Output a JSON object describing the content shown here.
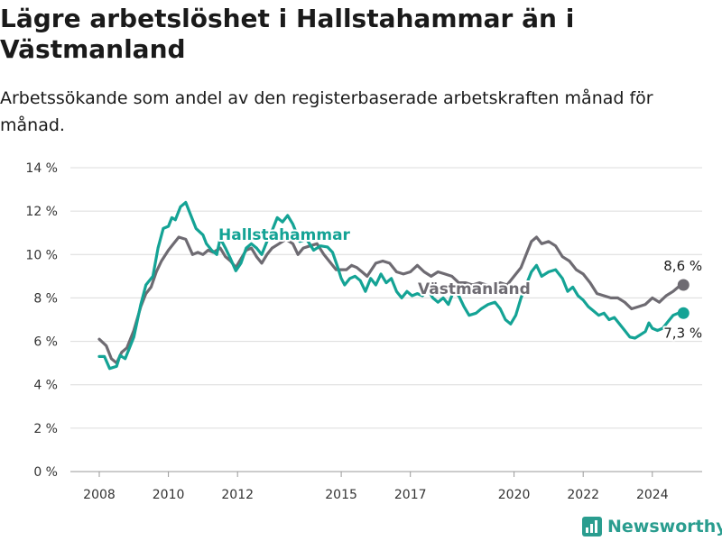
{
  "title": "Lägre arbetslöshet i Hallstahammar än i Västmanland",
  "subtitle": "Arbetssökande som andel av den registerbaserade arbetskraften månad för månad.",
  "brand": {
    "name": "Newsworthy",
    "icon": "newsworthy-logo-icon"
  },
  "colors": {
    "hallstahammar": "#14a395",
    "vastmanland": "#6e6b72",
    "grid": "#dcdcdc"
  },
  "chart_data": {
    "type": "line",
    "title": "Lägre arbetslöshet i Hallstahammar än i Västmanland",
    "subtitle": "Arbetssökande som andel av den registerbaserade arbetskraften månad för månad.",
    "xlabel": "",
    "ylabel": "",
    "ylim": [
      0,
      14
    ],
    "y_ticks": [
      0,
      2,
      4,
      6,
      8,
      10,
      12,
      14
    ],
    "y_tick_labels": [
      "0 %",
      "2 %",
      "4 %",
      "6 %",
      "8 %",
      "10 %",
      "12 %",
      "14 %"
    ],
    "x_ticks": [
      2008,
      2010,
      2012,
      2015,
      2017,
      2020,
      2022,
      2024
    ],
    "x_tick_labels": [
      "2008",
      "2010",
      "2012",
      "2015",
      "2017",
      "2020",
      "2022",
      "2024"
    ],
    "grid": true,
    "series": [
      {
        "name": "Hallstahammar",
        "end_label": "7,3 %",
        "points": [
          [
            2008.0,
            5.3
          ],
          [
            2008.15,
            5.3
          ],
          [
            2008.3,
            4.75
          ],
          [
            2008.5,
            4.85
          ],
          [
            2008.6,
            5.35
          ],
          [
            2008.75,
            5.2
          ],
          [
            2009.0,
            6.2
          ],
          [
            2009.2,
            7.7
          ],
          [
            2009.35,
            8.6
          ],
          [
            2009.55,
            9.0
          ],
          [
            2009.7,
            10.3
          ],
          [
            2009.85,
            11.2
          ],
          [
            2010.0,
            11.3
          ],
          [
            2010.1,
            11.7
          ],
          [
            2010.2,
            11.6
          ],
          [
            2010.35,
            12.2
          ],
          [
            2010.5,
            12.4
          ],
          [
            2010.65,
            11.8
          ],
          [
            2010.8,
            11.2
          ],
          [
            2011.0,
            10.9
          ],
          [
            2011.1,
            10.5
          ],
          [
            2011.25,
            10.2
          ],
          [
            2011.4,
            10.0
          ],
          [
            2011.5,
            10.75
          ],
          [
            2011.65,
            10.3
          ],
          [
            2011.8,
            9.8
          ],
          [
            2011.95,
            9.25
          ],
          [
            2012.1,
            9.6
          ],
          [
            2012.25,
            10.3
          ],
          [
            2012.4,
            10.5
          ],
          [
            2012.55,
            10.3
          ],
          [
            2012.7,
            10.0
          ],
          [
            2012.85,
            10.6
          ],
          [
            2013.0,
            11.1
          ],
          [
            2013.15,
            11.7
          ],
          [
            2013.3,
            11.5
          ],
          [
            2013.45,
            11.8
          ],
          [
            2013.6,
            11.4
          ],
          [
            2013.8,
            10.6
          ],
          [
            2014.0,
            10.7
          ],
          [
            2014.2,
            10.2
          ],
          [
            2014.4,
            10.4
          ],
          [
            2014.6,
            10.35
          ],
          [
            2014.75,
            10.1
          ],
          [
            2014.9,
            9.4
          ],
          [
            2015.0,
            8.9
          ],
          [
            2015.1,
            8.6
          ],
          [
            2015.25,
            8.9
          ],
          [
            2015.4,
            9.0
          ],
          [
            2015.55,
            8.8
          ],
          [
            2015.7,
            8.3
          ],
          [
            2015.85,
            8.9
          ],
          [
            2016.0,
            8.6
          ],
          [
            2016.15,
            9.1
          ],
          [
            2016.3,
            8.7
          ],
          [
            2016.45,
            8.9
          ],
          [
            2016.6,
            8.3
          ],
          [
            2016.75,
            8.0
          ],
          [
            2016.9,
            8.3
          ],
          [
            2017.05,
            8.1
          ],
          [
            2017.2,
            8.2
          ],
          [
            2017.35,
            8.1
          ],
          [
            2017.5,
            8.4
          ],
          [
            2017.65,
            8.0
          ],
          [
            2017.8,
            7.8
          ],
          [
            2017.95,
            8.0
          ],
          [
            2018.1,
            7.7
          ],
          [
            2018.25,
            8.3
          ],
          [
            2018.4,
            8.1
          ],
          [
            2018.55,
            7.6
          ],
          [
            2018.7,
            7.2
          ],
          [
            2018.9,
            7.3
          ],
          [
            2019.05,
            7.5
          ],
          [
            2019.25,
            7.7
          ],
          [
            2019.45,
            7.8
          ],
          [
            2019.6,
            7.5
          ],
          [
            2019.75,
            7.0
          ],
          [
            2019.9,
            6.8
          ],
          [
            2020.05,
            7.2
          ],
          [
            2020.2,
            8.0
          ],
          [
            2020.35,
            8.6
          ],
          [
            2020.5,
            9.2
          ],
          [
            2020.65,
            9.5
          ],
          [
            2020.8,
            9.0
          ],
          [
            2021.0,
            9.2
          ],
          [
            2021.2,
            9.3
          ],
          [
            2021.4,
            8.9
          ],
          [
            2021.55,
            8.3
          ],
          [
            2021.7,
            8.5
          ],
          [
            2021.85,
            8.1
          ],
          [
            2022.0,
            7.9
          ],
          [
            2022.15,
            7.6
          ],
          [
            2022.3,
            7.4
          ],
          [
            2022.45,
            7.2
          ],
          [
            2022.6,
            7.3
          ],
          [
            2022.75,
            7.0
          ],
          [
            2022.9,
            7.1
          ],
          [
            2023.05,
            6.8
          ],
          [
            2023.2,
            6.5
          ],
          [
            2023.35,
            6.2
          ],
          [
            2023.5,
            6.15
          ],
          [
            2023.65,
            6.3
          ],
          [
            2023.8,
            6.45
          ],
          [
            2023.9,
            6.85
          ],
          [
            2024.0,
            6.6
          ],
          [
            2024.15,
            6.5
          ],
          [
            2024.3,
            6.6
          ],
          [
            2024.45,
            6.9
          ],
          [
            2024.6,
            7.2
          ],
          [
            2024.75,
            7.3
          ],
          [
            2024.9,
            7.3
          ]
        ]
      },
      {
        "name": "Västmanland",
        "end_label": "8,6 %",
        "points": [
          [
            2008.0,
            6.1
          ],
          [
            2008.2,
            5.8
          ],
          [
            2008.35,
            5.2
          ],
          [
            2008.5,
            5.0
          ],
          [
            2008.65,
            5.5
          ],
          [
            2008.8,
            5.7
          ],
          [
            2009.0,
            6.5
          ],
          [
            2009.2,
            7.6
          ],
          [
            2009.35,
            8.2
          ],
          [
            2009.5,
            8.5
          ],
          [
            2009.65,
            9.2
          ],
          [
            2009.8,
            9.7
          ],
          [
            2010.0,
            10.2
          ],
          [
            2010.15,
            10.5
          ],
          [
            2010.3,
            10.8
          ],
          [
            2010.5,
            10.7
          ],
          [
            2010.7,
            10.0
          ],
          [
            2010.85,
            10.1
          ],
          [
            2011.0,
            10.0
          ],
          [
            2011.15,
            10.2
          ],
          [
            2011.3,
            10.1
          ],
          [
            2011.5,
            10.3
          ],
          [
            2011.65,
            9.9
          ],
          [
            2011.8,
            9.7
          ],
          [
            2011.95,
            9.4
          ],
          [
            2012.1,
            9.8
          ],
          [
            2012.25,
            10.2
          ],
          [
            2012.4,
            10.3
          ],
          [
            2012.55,
            9.9
          ],
          [
            2012.7,
            9.6
          ],
          [
            2012.85,
            10.0
          ],
          [
            2013.0,
            10.3
          ],
          [
            2013.2,
            10.5
          ],
          [
            2013.4,
            10.7
          ],
          [
            2013.6,
            10.5
          ],
          [
            2013.75,
            10.0
          ],
          [
            2013.9,
            10.3
          ],
          [
            2014.1,
            10.4
          ],
          [
            2014.3,
            10.5
          ],
          [
            2014.5,
            10.0
          ],
          [
            2014.7,
            9.6
          ],
          [
            2014.85,
            9.3
          ],
          [
            2015.0,
            9.3
          ],
          [
            2015.15,
            9.3
          ],
          [
            2015.3,
            9.5
          ],
          [
            2015.45,
            9.4
          ],
          [
            2015.6,
            9.2
          ],
          [
            2015.75,
            9.0
          ],
          [
            2016.0,
            9.6
          ],
          [
            2016.2,
            9.7
          ],
          [
            2016.4,
            9.6
          ],
          [
            2016.6,
            9.2
          ],
          [
            2016.8,
            9.1
          ],
          [
            2017.0,
            9.2
          ],
          [
            2017.2,
            9.5
          ],
          [
            2017.4,
            9.2
          ],
          [
            2017.6,
            9.0
          ],
          [
            2017.8,
            9.2
          ],
          [
            2018.0,
            9.1
          ],
          [
            2018.2,
            9.0
          ],
          [
            2018.4,
            8.7
          ],
          [
            2018.6,
            8.7
          ],
          [
            2018.8,
            8.6
          ],
          [
            2019.0,
            8.7
          ],
          [
            2019.2,
            8.6
          ],
          [
            2019.4,
            8.5
          ],
          [
            2019.6,
            8.7
          ],
          [
            2019.8,
            8.6
          ],
          [
            2020.0,
            9.0
          ],
          [
            2020.2,
            9.4
          ],
          [
            2020.35,
            10.0
          ],
          [
            2020.5,
            10.6
          ],
          [
            2020.65,
            10.8
          ],
          [
            2020.8,
            10.5
          ],
          [
            2021.0,
            10.6
          ],
          [
            2021.2,
            10.4
          ],
          [
            2021.4,
            9.9
          ],
          [
            2021.6,
            9.7
          ],
          [
            2021.8,
            9.3
          ],
          [
            2022.0,
            9.1
          ],
          [
            2022.2,
            8.7
          ],
          [
            2022.4,
            8.2
          ],
          [
            2022.6,
            8.1
          ],
          [
            2022.8,
            8.0
          ],
          [
            2023.0,
            8.0
          ],
          [
            2023.2,
            7.8
          ],
          [
            2023.4,
            7.5
          ],
          [
            2023.6,
            7.6
          ],
          [
            2023.8,
            7.7
          ],
          [
            2024.0,
            8.0
          ],
          [
            2024.2,
            7.8
          ],
          [
            2024.4,
            8.1
          ],
          [
            2024.6,
            8.3
          ],
          [
            2024.75,
            8.5
          ],
          [
            2024.9,
            8.6
          ]
        ]
      }
    ]
  }
}
